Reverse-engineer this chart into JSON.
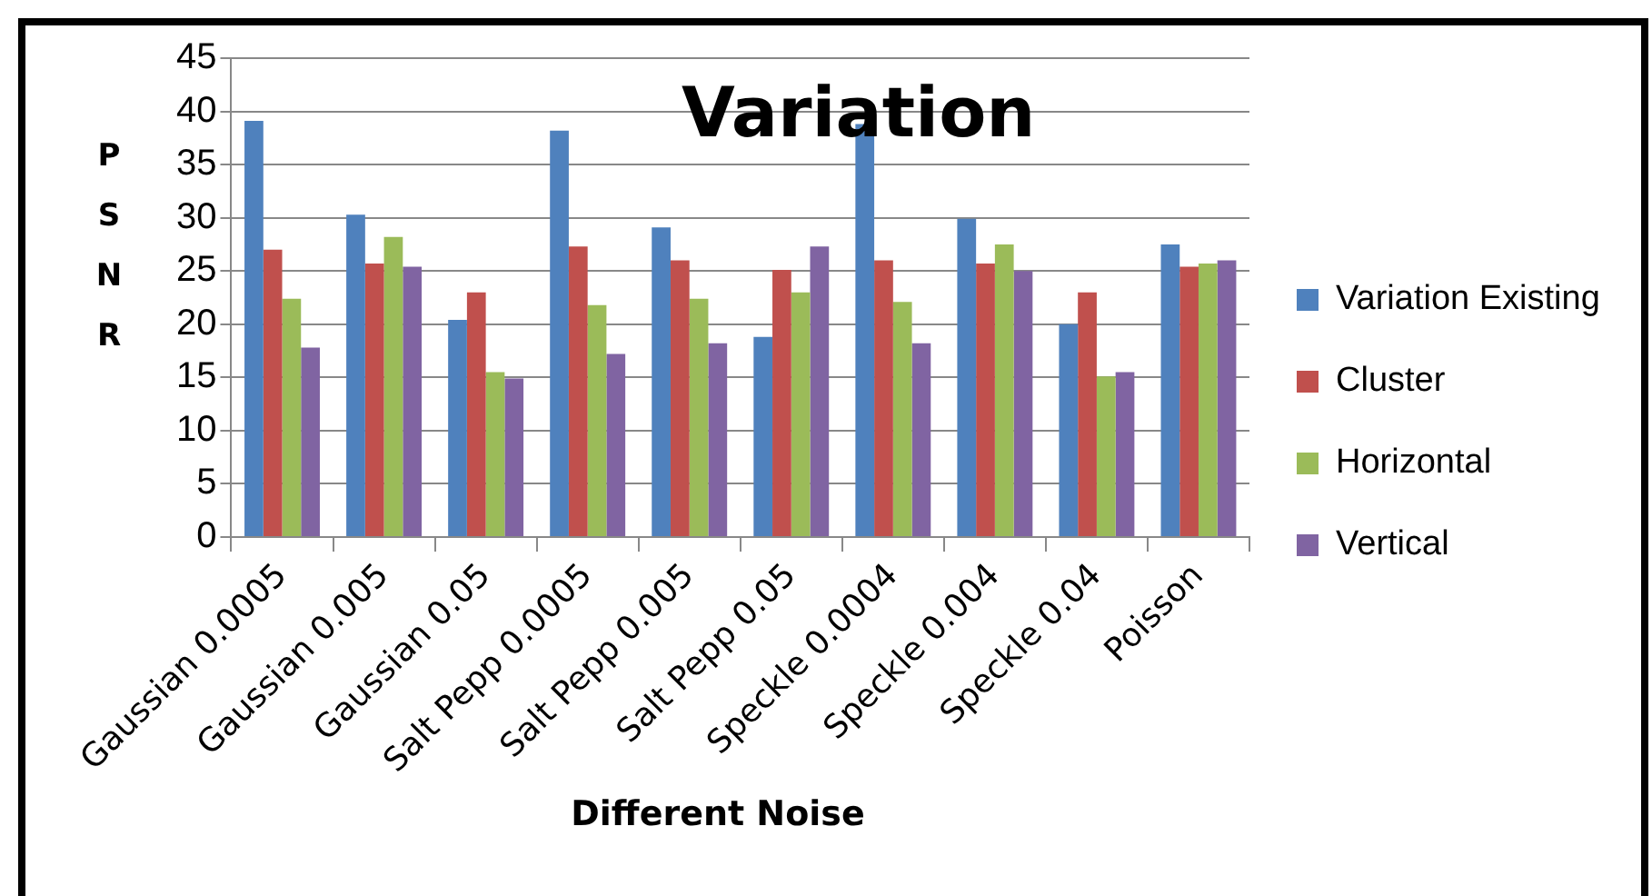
{
  "chart_data": {
    "type": "bar",
    "title": "Variation",
    "xlabel": "Different Noise",
    "ylabel": "PSNR",
    "categories": [
      "Gaussian 0.0005",
      "Gaussian 0.005",
      "Gaussian 0.05",
      "Salt Pepp 0.0005",
      "Salt Pepp 0.005",
      "Salt Pepp 0.05",
      "Speckle 0.0004",
      "Speckle 0.004",
      "Speckle 0.04",
      "Poisson"
    ],
    "series": [
      {
        "name": "Variation Existing",
        "color": "#4f81bd",
        "values": [
          39.1,
          30.3,
          20.4,
          38.2,
          29.1,
          18.8,
          38.8,
          29.9,
          20.0,
          27.5
        ]
      },
      {
        "name": "Cluster",
        "color": "#c0504d",
        "values": [
          27.0,
          25.7,
          23.0,
          27.3,
          26.0,
          25.1,
          26.0,
          25.7,
          23.0,
          25.4
        ]
      },
      {
        "name": "Horizontal",
        "color": "#9bbb59",
        "values": [
          22.4,
          28.2,
          15.5,
          21.8,
          22.4,
          23.0,
          22.1,
          27.5,
          15.1,
          25.7
        ]
      },
      {
        "name": "Vertical",
        "color": "#8064a2",
        "values": [
          17.8,
          25.4,
          14.9,
          17.2,
          18.2,
          27.3,
          18.2,
          25.0,
          15.5,
          26.0
        ]
      }
    ],
    "ylim": [
      0,
      45
    ],
    "yticks": [
      0,
      5,
      10,
      15,
      20,
      25,
      30,
      35,
      40,
      45
    ],
    "grid": "y",
    "legend": "right"
  }
}
